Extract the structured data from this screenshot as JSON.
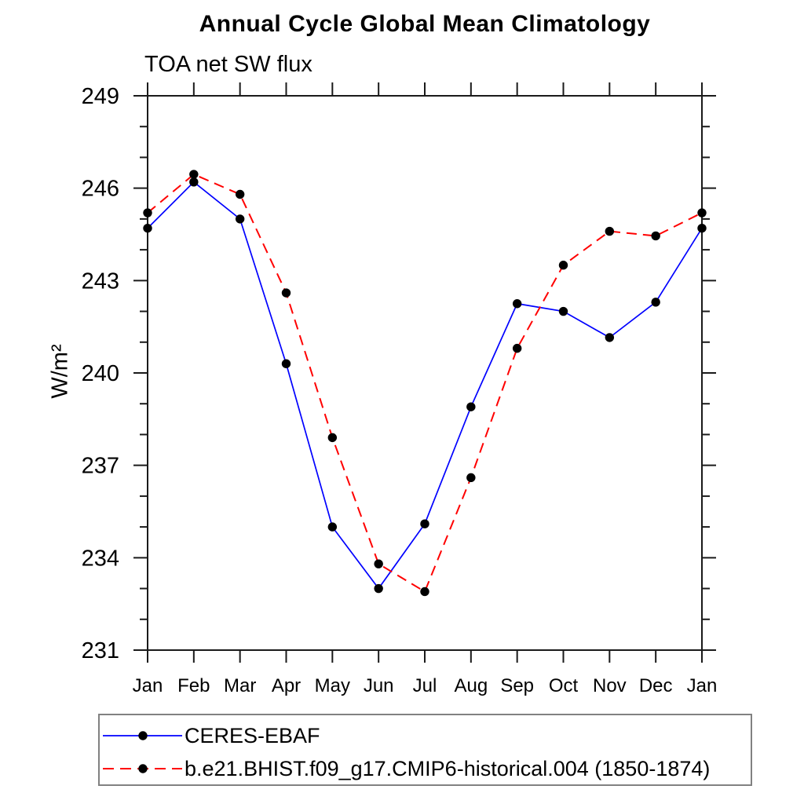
{
  "figure": {
    "background": "#ffffff",
    "text_color": "#000000",
    "axis_color": "#1a1a1a"
  },
  "chart_data": {
    "type": "line",
    "title": "Annual Cycle Global Mean Climatology",
    "subtitle": "TOA net SW flux",
    "ylabel": "W/m²",
    "xlabel": "",
    "grid": false,
    "legend_position": "bottom-left",
    "x_categories": [
      "Jan",
      "Feb",
      "Mar",
      "Apr",
      "May",
      "Jun",
      "Jul",
      "Aug",
      "Sep",
      "Oct",
      "Nov",
      "Dec",
      "Jan"
    ],
    "y_axis": {
      "min": 231,
      "max": 249,
      "major_step": 3,
      "minor_step": 1,
      "major_ticks": [
        231,
        234,
        237,
        240,
        243,
        246,
        249
      ]
    },
    "series": [
      {
        "name": "CERES-EBAF",
        "line_color": "#0000ff",
        "line_style": "solid",
        "marker": "circle",
        "marker_color": "#000000",
        "values": [
          244.7,
          246.2,
          245.0,
          240.3,
          235.0,
          233.0,
          235.1,
          238.9,
          242.25,
          242.0,
          241.15,
          242.3,
          244.7
        ]
      },
      {
        "name": "b.e21.BHIST.f09_g17.CMIP6-historical.004 (1850-1874)",
        "line_color": "#ff0000",
        "line_style": "dashed",
        "marker": "circle",
        "marker_color": "#000000",
        "values": [
          245.2,
          246.45,
          245.8,
          242.6,
          237.9,
          233.8,
          232.9,
          236.6,
          240.8,
          243.5,
          244.6,
          244.45,
          245.2
        ]
      }
    ]
  }
}
